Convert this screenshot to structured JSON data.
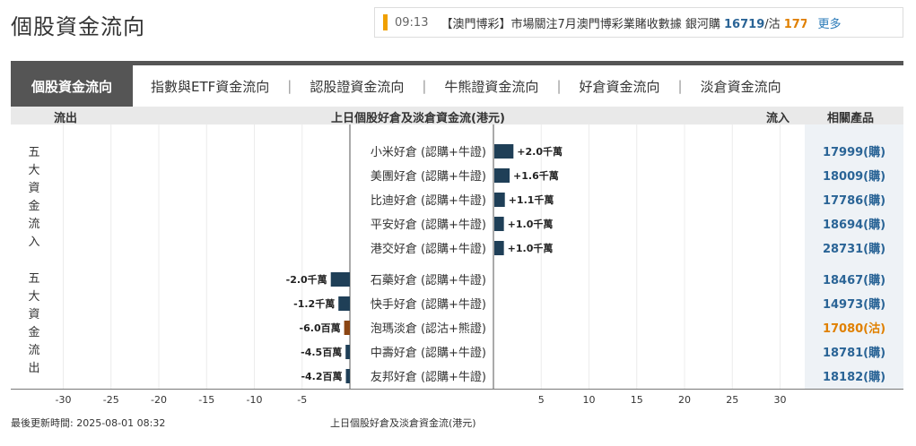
{
  "page_title": "個股資金流向",
  "ticker": {
    "time": "09:13",
    "headline_prefix": "【澳門博彩】市場關注7月澳門博彩業賭收數據 銀河購 ",
    "value_one": "16719",
    "headline_mid": "/沽 ",
    "value_two": "177...",
    "more_label": "更多"
  },
  "tabs": [
    {
      "label": "個股資金流向"
    },
    {
      "label": "指數與ETF資金流向"
    },
    {
      "label": "認股證資金流向"
    },
    {
      "label": "牛熊證資金流向"
    },
    {
      "label": "好倉資金流向"
    },
    {
      "label": "淡倉資金流向"
    }
  ],
  "tab_separator": "|",
  "table_header": {
    "outflow": "流出",
    "center": "上日個股好倉及淡倉資金流(港元)",
    "inflow": "流入",
    "related": "相關產品"
  },
  "side_labels": {
    "top_inflow": "五大資金流入",
    "top_outflow": "五大資金流出"
  },
  "colors": {
    "bar_main": "#1f3f57",
    "bar_highlight": "#8b4513",
    "link": "#2a6496",
    "highlight_text": "#e08000"
  },
  "chart_data": {
    "type": "bar",
    "orientation": "horizontal-diverging",
    "unit": "千萬 (HK$10M)",
    "xlim": [
      -30,
      30
    ],
    "ticks": [
      -30,
      -25,
      -20,
      -15,
      -10,
      -5,
      5,
      10,
      15,
      20,
      25,
      30
    ],
    "tick_labels": [
      "-30",
      "-25",
      "-20",
      "-15",
      "-10",
      "-5",
      "5",
      "10",
      "15",
      "20",
      "25",
      "30"
    ],
    "rows": [
      {
        "category": "小米好倉 (認購+牛證)",
        "value": 2.0,
        "value_label": "+2.0千萬",
        "product": "17999(購)",
        "highlight": false
      },
      {
        "category": "美團好倉 (認購+牛證)",
        "value": 1.6,
        "value_label": "+1.6千萬",
        "product": "18009(購)",
        "highlight": false
      },
      {
        "category": "比迪好倉 (認購+牛證)",
        "value": 1.1,
        "value_label": "+1.1千萬",
        "product": "17786(購)",
        "highlight": false
      },
      {
        "category": "平安好倉 (認購+牛證)",
        "value": 1.0,
        "value_label": "+1.0千萬",
        "product": "18694(購)",
        "highlight": false
      },
      {
        "category": "港交好倉 (認購+牛證)",
        "value": 1.0,
        "value_label": "+1.0千萬",
        "product": "28731(購)",
        "highlight": false
      },
      {
        "category": "石藥好倉 (認購+牛證)",
        "value": -2.0,
        "value_label": "-2.0千萬",
        "product": "18467(購)",
        "highlight": false
      },
      {
        "category": "快手好倉 (認購+牛證)",
        "value": -1.2,
        "value_label": "-1.2千萬",
        "product": "14973(購)",
        "highlight": false
      },
      {
        "category": "泡瑪淡倉 (認沽+熊證)",
        "value": -0.6,
        "value_label": "-6.0百萬",
        "product": "17080(沽)",
        "highlight": true
      },
      {
        "category": "中壽好倉 (認購+牛證)",
        "value": -0.45,
        "value_label": "-4.5百萬",
        "product": "18781(購)",
        "highlight": false
      },
      {
        "category": "友邦好倉 (認購+牛證)",
        "value": -0.42,
        "value_label": "-4.2百萬",
        "product": "18182(購)",
        "highlight": false
      }
    ]
  },
  "footer": {
    "updated": "最後更新時間: 2025-08-01 08:32",
    "caption": "上日個股好倉及淡倉資金流(港元)"
  }
}
